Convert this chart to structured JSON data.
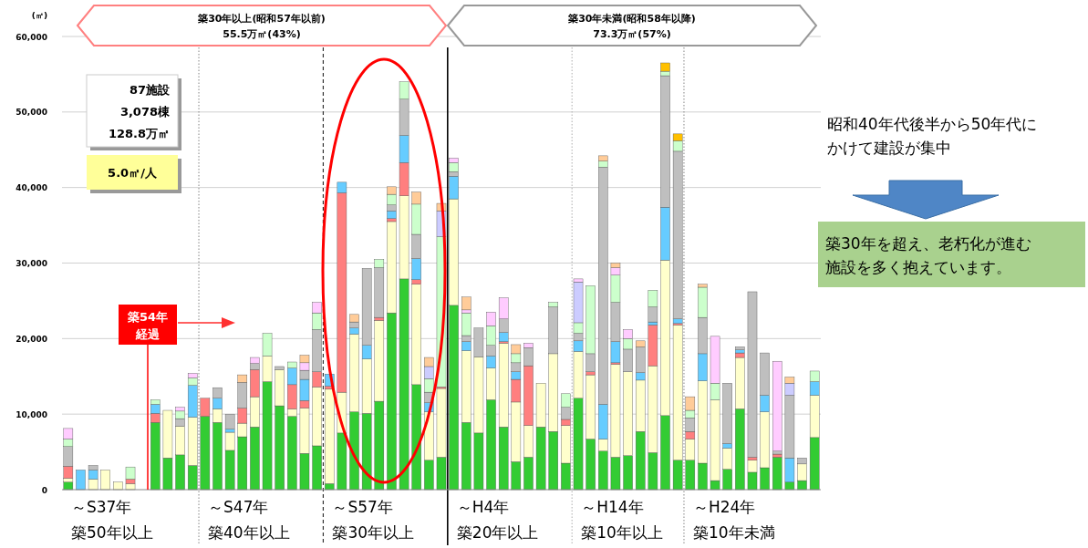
{
  "chart_data": {
    "type": "bar",
    "stacked": true,
    "ylabel": "(㎡)",
    "categories": [
      null,
      null,
      null,
      null,
      null,
      null,
      null,
      null,
      null,
      null,
      null,
      null,
      null,
      null,
      null,
      null,
      null,
      null,
      null,
      null,
      null,
      null,
      null,
      null,
      null,
      null,
      null,
      null,
      null,
      null,
      null,
      null,
      null,
      null,
      null,
      null,
      null,
      null,
      null,
      null,
      null,
      null,
      null,
      null,
      null,
      null,
      null,
      null,
      null,
      null,
      null,
      null,
      null,
      null,
      null,
      null,
      null,
      null,
      null,
      null,
      null
    ],
    "series": [
      {
        "color": "#33cc33",
        "values": [
          1000,
          null,
          null,
          null,
          null,
          null,
          null,
          8900,
          4200,
          4600,
          3200,
          9700,
          8900,
          5200,
          7000,
          8300,
          14300,
          11100,
          9700,
          4800,
          5800,
          800,
          7500,
          10300,
          10100,
          11700,
          23400,
          27900,
          13900,
          3900,
          4300,
          24400,
          8900,
          7500,
          11900,
          8300,
          3700,
          4300,
          8300,
          7700,
          3500,
          12100,
          6700,
          5100,
          4300,
          4500,
          7700,
          4900,
          9800,
          3900,
          3900,
          3500,
          1200,
          2700,
          10700,
          2300,
          2900,
          4300,
          1000,
          1200,
          6900
        ]
      },
      {
        "color": "#ffffcc",
        "values": [
          500,
          null,
          1400,
          2600,
          1000,
          800,
          null,
          null,
          6300,
          3800,
          6400,
          null,
          1800,
          2400,
          1800,
          4000,
          3400,
          4800,
          1000,
          6000,
          7800,
          12500,
          5400,
          10300,
          7200,
          10700,
          12100,
          11000,
          13300,
          6400,
          9100,
          14100,
          9500,
          10100,
          4200,
          11100,
          7900,
          4200,
          5800,
          10300,
          5000,
          6200,
          8500,
          1600,
          12300,
          11100,
          6800,
          11500,
          20600,
          17900,
          2800,
          10900,
          10700,
          2800,
          6800,
          1600,
          7400,
          null,
          null,
          2200,
          5600
        ]
      },
      {
        "color": "#ff7f7f",
        "values": [
          1600,
          null,
          null,
          null,
          null,
          600,
          null,
          1200,
          null,
          null,
          null,
          2400,
          null,
          null,
          2000,
          3600,
          null,
          null,
          3200,
          1000,
          2000,
          400,
          26400,
          null,
          null,
          400,
          400,
          4400,
          600,
          null,
          200,
          null,
          null,
          null,
          null,
          200,
          3000,
          7900,
          null,
          null,
          800,
          null,
          400,
          null,
          200,
          null,
          null,
          5400,
          null,
          200,
          1000,
          null,
          null,
          null,
          600,
          400,
          null,
          400,
          null,
          null,
          null
        ]
      },
      {
        "color": "#66ccff",
        "values": [
          null,
          2600,
          1200,
          null,
          null,
          null,
          null,
          1200,
          null,
          null,
          4200,
          null,
          1400,
          400,
          null,
          null,
          null,
          null,
          2200,
          2800,
          null,
          1600,
          1400,
          800,
          1800,
          null,
          1000,
          3600,
          2800,
          1200,
          null,
          3000,
          1200,
          null,
          1600,
          1200,
          1000,
          null,
          null,
          null,
          null,
          1400,
          null,
          4600,
          2800,
          null,
          1000,
          400,
          7000,
          600,
          null,
          3600,
          null,
          600,
          400,
          null,
          2200,
          null,
          3200,
          null,
          1800
        ]
      },
      {
        "color": "#bfbfbf",
        "values": [
          2600,
          null,
          600,
          null,
          null,
          null,
          null,
          null,
          null,
          1000,
          null,
          null,
          1400,
          2000,
          3400,
          800,
          null,
          400,
          null,
          1200,
          5600,
          null,
          null,
          800,
          10200,
          6600,
          800,
          4800,
          3200,
          1400,
          null,
          600,
          800,
          3800,
          1400,
          1800,
          1200,
          2400,
          null,
          6200,
          1600,
          1000,
          2400,
          31400,
          5200,
          3000,
          3400,
          2000,
          17400,
          22200,
          1800,
          4800,
          null,
          8000,
          400,
          21900,
          5600,
          400,
          8300,
          800,
          null
        ]
      },
      {
        "color": "#ccffcc",
        "values": [
          1000,
          null,
          null,
          null,
          null,
          1600,
          null,
          600,
          null,
          1000,
          1000,
          null,
          null,
          null,
          null,
          null,
          3000,
          null,
          800,
          null,
          2200,
          null,
          null,
          null,
          null,
          1100,
          1400,
          2300,
          4000,
          1800,
          19900,
          1200,
          3000,
          null,
          2600,
          null,
          1200,
          null,
          null,
          600,
          1800,
          1400,
          9000,
          800,
          3600,
          1400,
          null,
          2200,
          600,
          1400,
          1000,
          4000,
          2200,
          null,
          null,
          null,
          null,
          null,
          null,
          null,
          1400
        ]
      },
      {
        "color": "#ccccff",
        "values": [
          null,
          null,
          null,
          null,
          null,
          null,
          null,
          null,
          null,
          null,
          null,
          null,
          null,
          null,
          null,
          null,
          null,
          null,
          null,
          null,
          null,
          null,
          null,
          null,
          null,
          null,
          null,
          null,
          null,
          1600,
          3400,
          null,
          null,
          null,
          null,
          null,
          null,
          null,
          null,
          null,
          null,
          5400,
          null,
          null,
          null,
          null,
          null,
          null,
          null,
          null,
          null,
          null,
          null,
          null,
          null,
          null,
          null,
          null,
          1600,
          null,
          null
        ]
      },
      {
        "color": "#ffccff",
        "values": [
          1400,
          null,
          null,
          null,
          null,
          null,
          null,
          null,
          null,
          500,
          600,
          null,
          null,
          null,
          null,
          800,
          null,
          null,
          null,
          1000,
          1400,
          null,
          null,
          null,
          null,
          null,
          null,
          null,
          null,
          null,
          null,
          600,
          400,
          null,
          1800,
          2800,
          null,
          600,
          null,
          null,
          null,
          400,
          null,
          null,
          1000,
          1200,
          null,
          null,
          null,
          null,
          null,
          null,
          6200,
          null,
          null,
          null,
          null,
          11900,
          null,
          null,
          null
        ]
      },
      {
        "color": "#ffcc99",
        "values": [
          null,
          null,
          null,
          null,
          null,
          null,
          null,
          null,
          null,
          null,
          null,
          null,
          null,
          null,
          1000,
          null,
          null,
          null,
          null,
          1000,
          null,
          null,
          null,
          1000,
          null,
          null,
          1000,
          null,
          1600,
          1200,
          1000,
          null,
          1700,
          null,
          null,
          null,
          1200,
          null,
          null,
          null,
          null,
          null,
          null,
          700,
          600,
          null,
          800,
          null,
          null,
          null,
          1800,
          400,
          null,
          null,
          null,
          null,
          null,
          null,
          800,
          null,
          null
        ]
      },
      {
        "color": "#ffc000",
        "values": [
          null,
          null,
          null,
          null,
          null,
          null,
          null,
          null,
          null,
          null,
          null,
          null,
          null,
          null,
          null,
          null,
          null,
          null,
          null,
          null,
          null,
          null,
          null,
          null,
          null,
          null,
          null,
          null,
          null,
          null,
          null,
          null,
          null,
          null,
          null,
          null,
          null,
          null,
          null,
          null,
          null,
          null,
          null,
          null,
          null,
          null,
          null,
          null,
          1100,
          900,
          null,
          null,
          null,
          null,
          null,
          null,
          null,
          null,
          null,
          null,
          null
        ]
      }
    ],
    "ylim": [
      0,
      60000
    ],
    "yticks": [
      0,
      {
        "value": 10000,
        "label": "10,000"
      },
      {
        "value": 20000,
        "label": "20,000"
      },
      {
        "value": 30000,
        "label": "30,000"
      },
      {
        "value": 40000,
        "label": "40,000"
      },
      {
        "value": 50000,
        "label": "50,000"
      },
      {
        "value": 60000,
        "label": "60,000"
      }
    ],
    "grid": "y",
    "annotations": [
      "築30年以上(昭和57年以前)",
      "55.5万㎡(43%)",
      "築30年未満(昭和58年以降)",
      "73.3万㎡(57%)",
      "87施設",
      "3,078棟",
      "128.8万㎡",
      "5.0㎡/人",
      "築54年",
      "経過",
      "昭和40年代後半から50年代にかけて建設が集中",
      "築30年を超え、老朽化が進む施設を多く抱えています。",
      "～S37年",
      "築50年以上",
      "～S47年",
      "築40年以上",
      "～S57年",
      "築30年以上",
      "～H4年",
      "築20年以上",
      "～H14年",
      "築10年以上",
      "～H24年",
      "築10年未満"
    ]
  }
}
